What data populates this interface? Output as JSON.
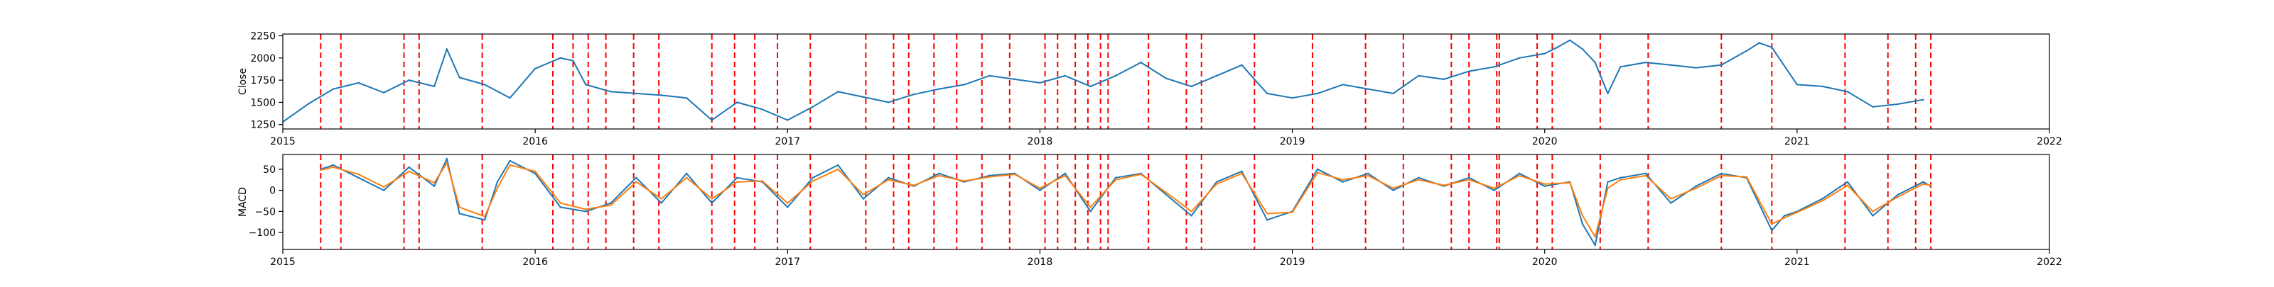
{
  "chart_data": [
    {
      "type": "line",
      "title": "",
      "xlabel": "",
      "ylabel": "Close",
      "xlim": [
        2015,
        2022
      ],
      "ylim": [
        1200,
        2270
      ],
      "xticks": [
        2015,
        2016,
        2017,
        2018,
        2019,
        2020,
        2021,
        2022
      ],
      "xticklabels": [
        "2015",
        "2016",
        "2017",
        "2018",
        "2019",
        "2020",
        "2021",
        "2022"
      ],
      "yticks": [
        1250,
        1500,
        1750,
        2000,
        2250
      ],
      "yticklabels": [
        "1250",
        "1500",
        "1750",
        "2000",
        "2250"
      ],
      "grid": false,
      "series": [
        {
          "color": "#1f77b4",
          "x": [
            2015.0,
            2015.1,
            2015.2,
            2015.3,
            2015.4,
            2015.5,
            2015.6,
            2015.65,
            2015.7,
            2015.8,
            2015.9,
            2016.0,
            2016.1,
            2016.15,
            2016.2,
            2016.3,
            2016.4,
            2016.5,
            2016.6,
            2016.7,
            2016.8,
            2016.9,
            2017.0,
            2017.1,
            2017.2,
            2017.3,
            2017.4,
            2017.5,
            2017.6,
            2017.7,
            2017.8,
            2017.9,
            2018.0,
            2018.1,
            2018.2,
            2018.3,
            2018.4,
            2018.5,
            2018.6,
            2018.7,
            2018.8,
            2018.9,
            2019.0,
            2019.1,
            2019.2,
            2019.3,
            2019.4,
            2019.5,
            2019.6,
            2019.7,
            2019.8,
            2019.9,
            2020.0,
            2020.05,
            2020.1,
            2020.15,
            2020.2,
            2020.25,
            2020.3,
            2020.4,
            2020.5,
            2020.6,
            2020.7,
            2020.8,
            2020.85,
            2020.9,
            2021.0,
            2021.1,
            2021.2,
            2021.3,
            2021.4,
            2021.5
          ],
          "y": [
            1280,
            1480,
            1650,
            1720,
            1610,
            1750,
            1680,
            2100,
            1780,
            1700,
            1550,
            1880,
            2000,
            1970,
            1700,
            1620,
            1600,
            1580,
            1550,
            1300,
            1500,
            1420,
            1300,
            1450,
            1620,
            1560,
            1500,
            1590,
            1650,
            1700,
            1800,
            1760,
            1720,
            1800,
            1680,
            1800,
            1950,
            1770,
            1680,
            1800,
            1920,
            1600,
            1550,
            1600,
            1700,
            1650,
            1600,
            1800,
            1760,
            1850,
            1900,
            2000,
            2050,
            2120,
            2200,
            2100,
            1950,
            1600,
            1900,
            1950,
            1920,
            1890,
            1920,
            2080,
            2170,
            2120,
            1700,
            1680,
            1620,
            1450,
            1480,
            1530
          ]
        }
      ],
      "vlines": [
        2015.15,
        2015.23,
        2015.48,
        2015.54,
        2015.79,
        2016.07,
        2016.15,
        2016.21,
        2016.28,
        2016.39,
        2016.49,
        2016.7,
        2016.79,
        2016.87,
        2016.96,
        2017.09,
        2017.31,
        2017.42,
        2017.48,
        2017.58,
        2017.67,
        2017.77,
        2017.88,
        2018.02,
        2018.07,
        2018.14,
        2018.19,
        2018.24,
        2018.27,
        2018.43,
        2018.58,
        2018.64,
        2018.85,
        2019.08,
        2019.29,
        2019.44,
        2019.63,
        2019.7,
        2019.81,
        2019.82,
        2019.97,
        2020.03,
        2020.22,
        2020.41,
        2020.7,
        2020.9,
        2021.19,
        2021.36,
        2021.47,
        2021.53
      ]
    },
    {
      "type": "line",
      "title": "",
      "xlabel": "",
      "ylabel": "MACD",
      "xlim": [
        2015,
        2022
      ],
      "ylim": [
        -140,
        85
      ],
      "xticks": [
        2015,
        2016,
        2017,
        2018,
        2019,
        2020,
        2021,
        2022
      ],
      "xticklabels": [
        "2015",
        "2016",
        "2017",
        "2018",
        "2019",
        "2020",
        "2021",
        "2022"
      ],
      "yticks": [
        50,
        0,
        -50,
        -100
      ],
      "yticklabels": [
        "50",
        "0",
        "−50",
        "−100"
      ],
      "grid": false,
      "series": [
        {
          "color": "#1f77b4",
          "x": [
            2015.15,
            2015.2,
            2015.3,
            2015.4,
            2015.5,
            2015.6,
            2015.65,
            2015.7,
            2015.8,
            2015.85,
            2015.9,
            2016.0,
            2016.1,
            2016.2,
            2016.3,
            2016.4,
            2016.5,
            2016.6,
            2016.7,
            2016.8,
            2016.9,
            2017.0,
            2017.1,
            2017.2,
            2017.3,
            2017.4,
            2017.5,
            2017.6,
            2017.7,
            2017.8,
            2017.9,
            2018.0,
            2018.1,
            2018.2,
            2018.3,
            2018.4,
            2018.5,
            2018.6,
            2018.7,
            2018.8,
            2018.9,
            2019.0,
            2019.1,
            2019.2,
            2019.3,
            2019.4,
            2019.5,
            2019.6,
            2019.7,
            2019.8,
            2019.9,
            2020.0,
            2020.1,
            2020.15,
            2020.2,
            2020.25,
            2020.3,
            2020.4,
            2020.5,
            2020.6,
            2020.7,
            2020.8,
            2020.9,
            2020.95,
            2021.0,
            2021.1,
            2021.2,
            2021.3,
            2021.4,
            2021.5,
            2021.53
          ],
          "y": [
            50,
            60,
            30,
            0,
            55,
            10,
            75,
            -55,
            -70,
            20,
            70,
            40,
            -40,
            -50,
            -30,
            30,
            -30,
            40,
            -30,
            30,
            20,
            -40,
            30,
            60,
            -20,
            30,
            10,
            40,
            20,
            35,
            40,
            0,
            40,
            -50,
            30,
            40,
            -10,
            -60,
            20,
            45,
            -70,
            -50,
            50,
            20,
            40,
            0,
            30,
            10,
            30,
            0,
            40,
            10,
            20,
            -80,
            -130,
            20,
            30,
            40,
            -30,
            10,
            40,
            30,
            -95,
            -60,
            -50,
            -20,
            20,
            -60,
            -10,
            20,
            10
          ]
        },
        {
          "color": "#ff7f0e",
          "x": [
            2015.15,
            2015.2,
            2015.3,
            2015.4,
            2015.5,
            2015.6,
            2015.65,
            2015.7,
            2015.8,
            2015.85,
            2015.9,
            2016.0,
            2016.1,
            2016.2,
            2016.3,
            2016.4,
            2016.5,
            2016.6,
            2016.7,
            2016.8,
            2016.9,
            2017.0,
            2017.1,
            2017.2,
            2017.3,
            2017.4,
            2017.5,
            2017.6,
            2017.7,
            2017.8,
            2017.9,
            2018.0,
            2018.1,
            2018.2,
            2018.3,
            2018.4,
            2018.5,
            2018.6,
            2018.7,
            2018.8,
            2018.9,
            2019.0,
            2019.1,
            2019.2,
            2019.3,
            2019.4,
            2019.5,
            2019.6,
            2019.7,
            2019.8,
            2019.9,
            2020.0,
            2020.1,
            2020.15,
            2020.2,
            2020.25,
            2020.3,
            2020.4,
            2020.5,
            2020.6,
            2020.7,
            2020.8,
            2020.9,
            2020.95,
            2021.0,
            2021.1,
            2021.2,
            2021.3,
            2021.4,
            2021.5,
            2021.53
          ],
          "y": [
            48,
            55,
            38,
            8,
            45,
            18,
            65,
            -40,
            -62,
            5,
            60,
            45,
            -30,
            -45,
            -35,
            20,
            -20,
            30,
            -20,
            20,
            22,
            -30,
            22,
            50,
            -10,
            25,
            12,
            35,
            22,
            32,
            38,
            5,
            35,
            -40,
            25,
            38,
            -5,
            -50,
            15,
            40,
            -55,
            -52,
            42,
            25,
            35,
            5,
            25,
            12,
            25,
            5,
            35,
            15,
            18,
            -60,
            -110,
            5,
            25,
            35,
            -20,
            5,
            35,
            32,
            -80,
            -65,
            -52,
            -25,
            12,
            -50,
            -15,
            15,
            12
          ]
        }
      ],
      "vlines": [
        2015.15,
        2015.23,
        2015.48,
        2015.54,
        2015.79,
        2016.07,
        2016.15,
        2016.21,
        2016.28,
        2016.39,
        2016.49,
        2016.7,
        2016.79,
        2016.87,
        2016.96,
        2017.09,
        2017.31,
        2017.42,
        2017.48,
        2017.58,
        2017.67,
        2017.77,
        2017.88,
        2018.02,
        2018.07,
        2018.14,
        2018.19,
        2018.24,
        2018.27,
        2018.43,
        2018.58,
        2018.64,
        2018.85,
        2019.08,
        2019.29,
        2019.44,
        2019.63,
        2019.7,
        2019.81,
        2019.82,
        2019.97,
        2020.03,
        2020.22,
        2020.41,
        2020.7,
        2020.9,
        2021.19,
        2021.36,
        2021.47,
        2021.53
      ]
    }
  ]
}
